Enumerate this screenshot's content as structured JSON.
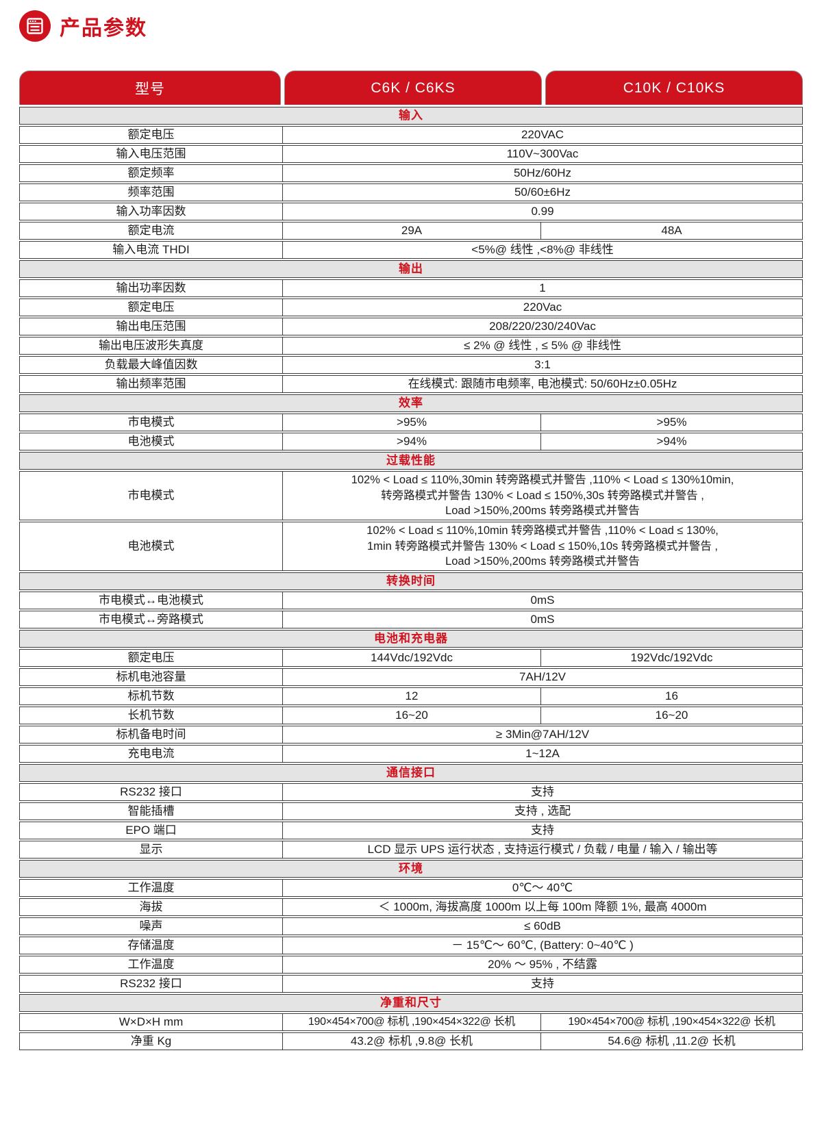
{
  "page": {
    "title": "产品参数"
  },
  "colors": {
    "accent_red": "#cf131e",
    "section_header_bg": "#e4e4e4",
    "table_border": "#3d3d3d",
    "text": "#1c1c1c"
  },
  "icons": {
    "title_icon": "document-list-icon"
  },
  "table": {
    "header": {
      "model": "型号",
      "col1": "C6K / C6KS",
      "col2": "C10K / C10KS"
    },
    "sections": [
      {
        "title": "输入",
        "rows": [
          {
            "label": "额定电压",
            "value": "220VAC"
          },
          {
            "label": "输入电压范围",
            "value": "110V~300Vac"
          },
          {
            "label": "额定频率",
            "value": "50Hz/60Hz"
          },
          {
            "label": "频率范围",
            "value": "50/60±6Hz"
          },
          {
            "label": "输入功率因数",
            "value": "0.99"
          },
          {
            "label": "额定电流",
            "value1": "29A",
            "value2": "48A"
          },
          {
            "label": "输入电流 THDI",
            "value": "<5%@ 线性 ,<8%@ 非线性"
          }
        ]
      },
      {
        "title": "输出",
        "rows": [
          {
            "label": "输出功率因数",
            "value": "1"
          },
          {
            "label": "额定电压",
            "value": "220Vac"
          },
          {
            "label": "输出电压范围",
            "value": "208/220/230/240Vac"
          },
          {
            "label": "输出电压波形失真度",
            "value": "≤ 2% @ 线性 , ≤ 5% @ 非线性"
          },
          {
            "label": "负载最大峰值因数",
            "value": "3:1"
          },
          {
            "label": "输出频率范围",
            "value": "在线模式: 跟随市电频率, 电池模式: 50/60Hz±0.05Hz"
          }
        ]
      },
      {
        "title": "效率",
        "rows": [
          {
            "label": "市电模式",
            "value1": ">95%",
            "value2": ">95%"
          },
          {
            "label": "电池模式",
            "value1": ">94%",
            "value2": ">94%"
          }
        ]
      },
      {
        "title": "过载性能",
        "rows": [
          {
            "label": "市电模式",
            "lines": [
              "102% < Load ≤ 110%,30min 转旁路模式并警告 ,110% < Load ≤ 130%10min,",
              "转旁路模式并警告 130% < Load ≤ 150%,30s 转旁路模式并警告 ,",
              "Load >150%,200ms 转旁路模式并警告"
            ]
          },
          {
            "label": "电池模式",
            "lines": [
              "102% < Load ≤ 110%,10min 转旁路模式并警告 ,110% < Load ≤ 130%,",
              "1min 转旁路模式并警告 130% < Load ≤ 150%,10s 转旁路模式并警告 ,",
              "Load >150%,200ms 转旁路模式并警告"
            ]
          }
        ]
      },
      {
        "title": "转换时间",
        "rows": [
          {
            "label": "市电模式↔电池模式",
            "value": "0mS"
          },
          {
            "label": "市电模式↔旁路模式",
            "value": "0mS"
          }
        ]
      },
      {
        "title": "电池和充电器",
        "rows": [
          {
            "label": "额定电压",
            "value1": "144Vdc/192Vdc",
            "value2": "192Vdc/192Vdc"
          },
          {
            "label": "标机电池容量",
            "value": "7AH/12V"
          },
          {
            "label": "标机节数",
            "value1": "12",
            "value2": "16"
          },
          {
            "label": "长机节数",
            "value1": "16~20",
            "value2": "16~20"
          },
          {
            "label": "标机备电时间",
            "value": "≥ 3Min@7AH/12V"
          },
          {
            "label": "充电电流",
            "value": "1~12A"
          }
        ]
      },
      {
        "title": "通信接口",
        "rows": [
          {
            "label": "RS232 接口",
            "value": "支持"
          },
          {
            "label": "智能插槽",
            "value": "支持 , 选配"
          },
          {
            "label": "EPO 端口",
            "value": "支持"
          },
          {
            "label": "显示",
            "value": "LCD 显示 UPS 运行状态 , 支持运行模式 / 负载 / 电量 / 输入 / 输出等"
          }
        ]
      },
      {
        "title": "环境",
        "rows": [
          {
            "label": "工作温度",
            "value": "0℃～ 40℃"
          },
          {
            "label": "海拔",
            "value": "＜ 1000m, 海拔高度 1000m 以上每 100m 降额 1%, 最高 4000m"
          },
          {
            "label": "噪声",
            "value": "≤ 60dB"
          },
          {
            "label": "存储温度",
            "value": "－ 15℃～ 60℃, (Battery: 0~40℃ )"
          },
          {
            "label": "工作温度",
            "value": "20% ～ 95% , 不结露"
          },
          {
            "label": "RS232 接口",
            "value": "支持"
          }
        ]
      },
      {
        "title": "净重和尺寸",
        "rows": [
          {
            "label": "W×D×H mm",
            "dim": true,
            "value1": "190×454×700@ 标机 ,190×454×322@ 长机",
            "value2": "190×454×700@ 标机 ,190×454×322@ 长机"
          },
          {
            "label": "净重 Kg",
            "value1": "43.2@ 标机 ,9.8@ 长机",
            "value2": "54.6@ 标机 ,11.2@ 长机"
          }
        ]
      }
    ]
  }
}
